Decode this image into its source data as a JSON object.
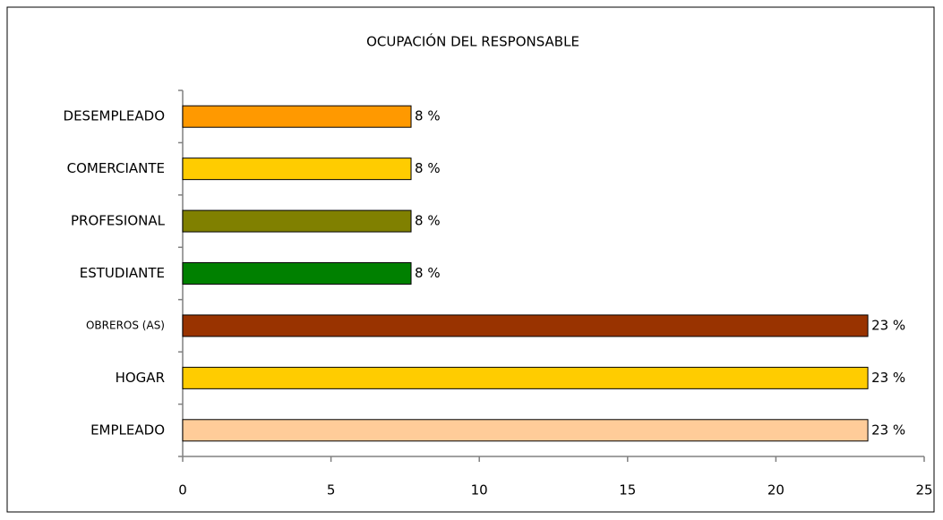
{
  "chart_data": {
    "type": "barh",
    "title": "OCUPACIÓN DEL RESPONSABLE",
    "categories": [
      "DESEMPLEADO",
      "COMERCIANTE",
      "PROFESIONAL",
      "ESTUDIANTE",
      "OBREROS (AS)",
      "HOGAR",
      "EMPLEADO"
    ],
    "values": [
      7.7,
      7.7,
      7.7,
      7.7,
      23.1,
      23.1,
      23.1
    ],
    "value_labels": [
      "8 %",
      "8 %",
      "8 %",
      "8 %",
      "23 %",
      "23 %",
      "23 %"
    ],
    "colors": [
      "#ff9900",
      "#ffcc00",
      "#808000",
      "#008000",
      "#993300",
      "#ffcc00",
      "#ffcc99"
    ],
    "xlim": [
      0,
      25
    ],
    "xticks": [
      0,
      5,
      10,
      15,
      20,
      25
    ],
    "grid": false
  }
}
